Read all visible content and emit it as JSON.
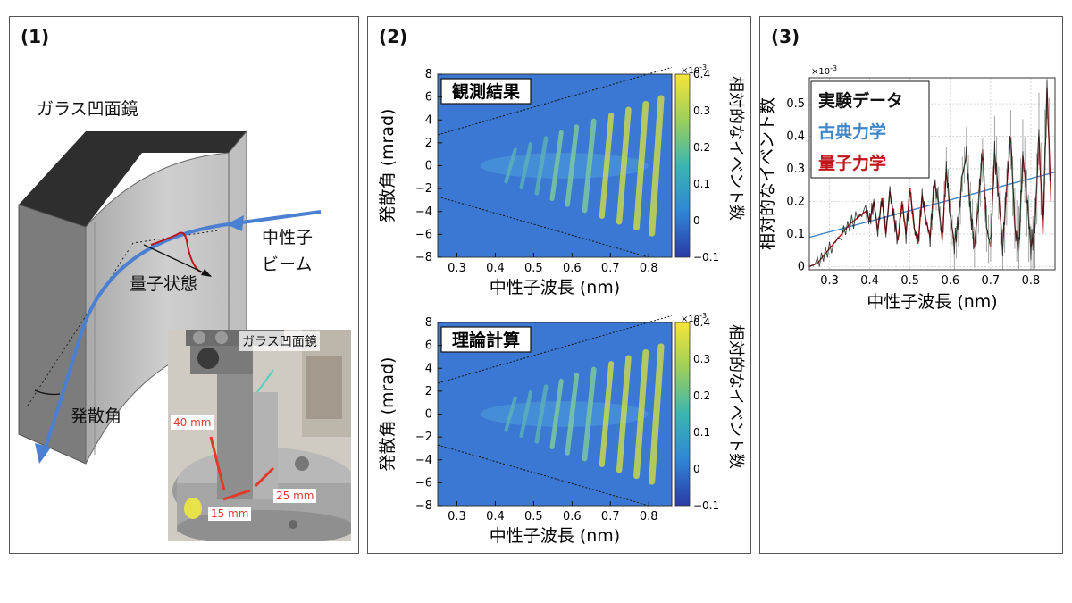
{
  "panels": {
    "p1": {
      "label": "(1)",
      "mirror_label": "ガラス凹面鏡",
      "beam_label_line1": "中性子",
      "beam_label_line2": "ビーム",
      "quantum_state_label": "量子状態",
      "divergence_label": "発散角",
      "photo": {
        "mirror_label": "ガラス凹面鏡",
        "dim_height": "40 mm",
        "dim_width": "15 mm",
        "dim_depth": "25 mm"
      }
    },
    "p2": {
      "label": "(2)"
    },
    "p3": {
      "label": "(3)"
    }
  },
  "colors": {
    "beam": "#4a7fd1",
    "heatmap_bg": "#3a78d4",
    "classical": "#3f86c8",
    "quantum": "#c0161b",
    "experiment": "#111111",
    "dimension": "#e03a2a",
    "pointer": "#55d0c0"
  },
  "chart_data": [
    {
      "type": "heatmap",
      "title": "観測結果",
      "xlabel": "中性子波長 (nm)",
      "ylabel": "発散角 (mrad)",
      "colorbar_label": "相対的なイベント数",
      "colorbar_exponent": "×10",
      "colorbar_exponent_power": "-3",
      "xlim": [
        0.25,
        0.86
      ],
      "ylim": [
        -8,
        8
      ],
      "xticks": [
        "0.3",
        "0.4",
        "0.5",
        "0.6",
        "0.7",
        "0.8"
      ],
      "yticks": [
        "8",
        "6",
        "4",
        "2",
        "0",
        "−2",
        "−4",
        "−6",
        "−8"
      ],
      "clim": [
        -0.1,
        0.4
      ],
      "cticks": [
        "0.4",
        "0.3",
        "0.2",
        "0.1",
        "0",
        "−0.1"
      ],
      "stripe_wavelengths": [
        0.44,
        0.48,
        0.52,
        0.56,
        0.6,
        0.645,
        0.69,
        0.735,
        0.78,
        0.82
      ]
    },
    {
      "type": "heatmap",
      "title": "理論計算",
      "xlabel": "中性子波長 (nm)",
      "ylabel": "発散角 (mrad)",
      "colorbar_label": "相対的なイベント数",
      "colorbar_exponent": "×10",
      "colorbar_exponent_power": "-3",
      "xlim": [
        0.25,
        0.86
      ],
      "ylim": [
        -8,
        8
      ],
      "xticks": [
        "0.3",
        "0.4",
        "0.5",
        "0.6",
        "0.7",
        "0.8"
      ],
      "yticks": [
        "8",
        "6",
        "4",
        "2",
        "0",
        "−2",
        "−4",
        "−6",
        "−8"
      ],
      "clim": [
        -0.1,
        0.4
      ],
      "cticks": [
        "0.4",
        "0.3",
        "0.2",
        "0.1",
        "0",
        "−0.1"
      ],
      "stripe_wavelengths": [
        0.44,
        0.48,
        0.52,
        0.56,
        0.6,
        0.645,
        0.69,
        0.735,
        0.78,
        0.82
      ]
    },
    {
      "type": "line",
      "xlabel": "中性子波長 (nm)",
      "ylabel": "相対的なイベント数",
      "y_exponent": "×10",
      "y_exponent_power": "-3",
      "xlim": [
        0.25,
        0.86
      ],
      "ylim": [
        -0.01,
        0.58
      ],
      "xticks": [
        "0.3",
        "0.4",
        "0.5",
        "0.6",
        "0.7",
        "0.8"
      ],
      "yticks": [
        "0.5",
        "0.4",
        "0.3",
        "0.2",
        "0.1",
        "0"
      ],
      "legend": [
        "実験データ",
        "古典力学",
        "量子力学"
      ],
      "series": [
        {
          "name": "古典力学",
          "x": [
            0.25,
            0.86
          ],
          "y": [
            0.09,
            0.29
          ]
        },
        {
          "name": "量子力学",
          "x": [
            0.25,
            0.27,
            0.29,
            0.31,
            0.33,
            0.35,
            0.37,
            0.39,
            0.4,
            0.41,
            0.42,
            0.43,
            0.44,
            0.45,
            0.46,
            0.47,
            0.48,
            0.49,
            0.5,
            0.51,
            0.52,
            0.53,
            0.54,
            0.55,
            0.56,
            0.57,
            0.58,
            0.59,
            0.6,
            0.61,
            0.62,
            0.63,
            0.64,
            0.65,
            0.66,
            0.67,
            0.68,
            0.69,
            0.7,
            0.71,
            0.72,
            0.73,
            0.74,
            0.75,
            0.76,
            0.77,
            0.78,
            0.79,
            0.8,
            0.81,
            0.82,
            0.83,
            0.84,
            0.85
          ],
          "y": [
            0.0,
            0.01,
            0.04,
            0.07,
            0.1,
            0.13,
            0.15,
            0.17,
            0.14,
            0.2,
            0.11,
            0.21,
            0.1,
            0.23,
            0.15,
            0.08,
            0.2,
            0.1,
            0.24,
            0.12,
            0.07,
            0.22,
            0.14,
            0.09,
            0.26,
            0.2,
            0.08,
            0.3,
            0.16,
            0.07,
            0.14,
            0.28,
            0.34,
            0.17,
            0.06,
            0.2,
            0.36,
            0.12,
            0.06,
            0.35,
            0.22,
            0.06,
            0.25,
            0.4,
            0.12,
            0.05,
            0.34,
            0.22,
            0.06,
            0.12,
            0.4,
            0.1,
            0.55,
            0.2
          ]
        }
      ]
    }
  ]
}
